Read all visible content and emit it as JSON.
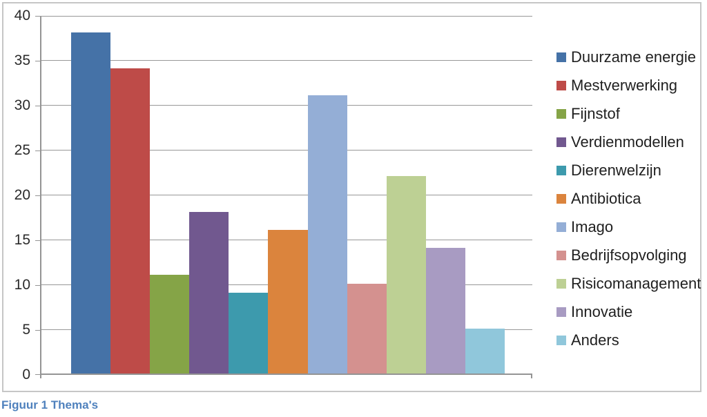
{
  "caption": "Figuur 1 Thema's",
  "chart_data": {
    "type": "bar",
    "title": "",
    "categories": [
      ""
    ],
    "series": [
      {
        "name": "Duurzame energie",
        "values": [
          38
        ],
        "color": "#4572A7"
      },
      {
        "name": "Mestverwerking",
        "values": [
          34
        ],
        "color": "#BE4B48"
      },
      {
        "name": "Fijnstof",
        "values": [
          11
        ],
        "color": "#85A447"
      },
      {
        "name": "Verdienmodellen",
        "values": [
          18
        ],
        "color": "#71588F"
      },
      {
        "name": "Dierenwelzijn",
        "values": [
          9
        ],
        "color": "#3D9AAD"
      },
      {
        "name": "Antibiotica",
        "values": [
          16
        ],
        "color": "#DB843D"
      },
      {
        "name": "Imago",
        "values": [
          31
        ],
        "color": "#94AED6"
      },
      {
        "name": "Bedrijfsopvolging",
        "values": [
          10
        ],
        "color": "#D4918F"
      },
      {
        "name": "Risicomanagement",
        "values": [
          22
        ],
        "color": "#BDD094"
      },
      {
        "name": "Innovatie",
        "values": [
          14
        ],
        "color": "#A89BC2"
      },
      {
        "name": "Anders",
        "values": [
          5
        ],
        "color": "#90C7DB"
      }
    ],
    "xlabel": "",
    "ylabel": "",
    "ylim": [
      0,
      40
    ],
    "yticks": [
      0,
      5,
      10,
      15,
      20,
      25,
      30,
      35,
      40
    ],
    "grid": true,
    "legend_position": "right",
    "axis_color": "#949494",
    "gridline_color": "#979797",
    "caption_color": "#4F81BD"
  }
}
